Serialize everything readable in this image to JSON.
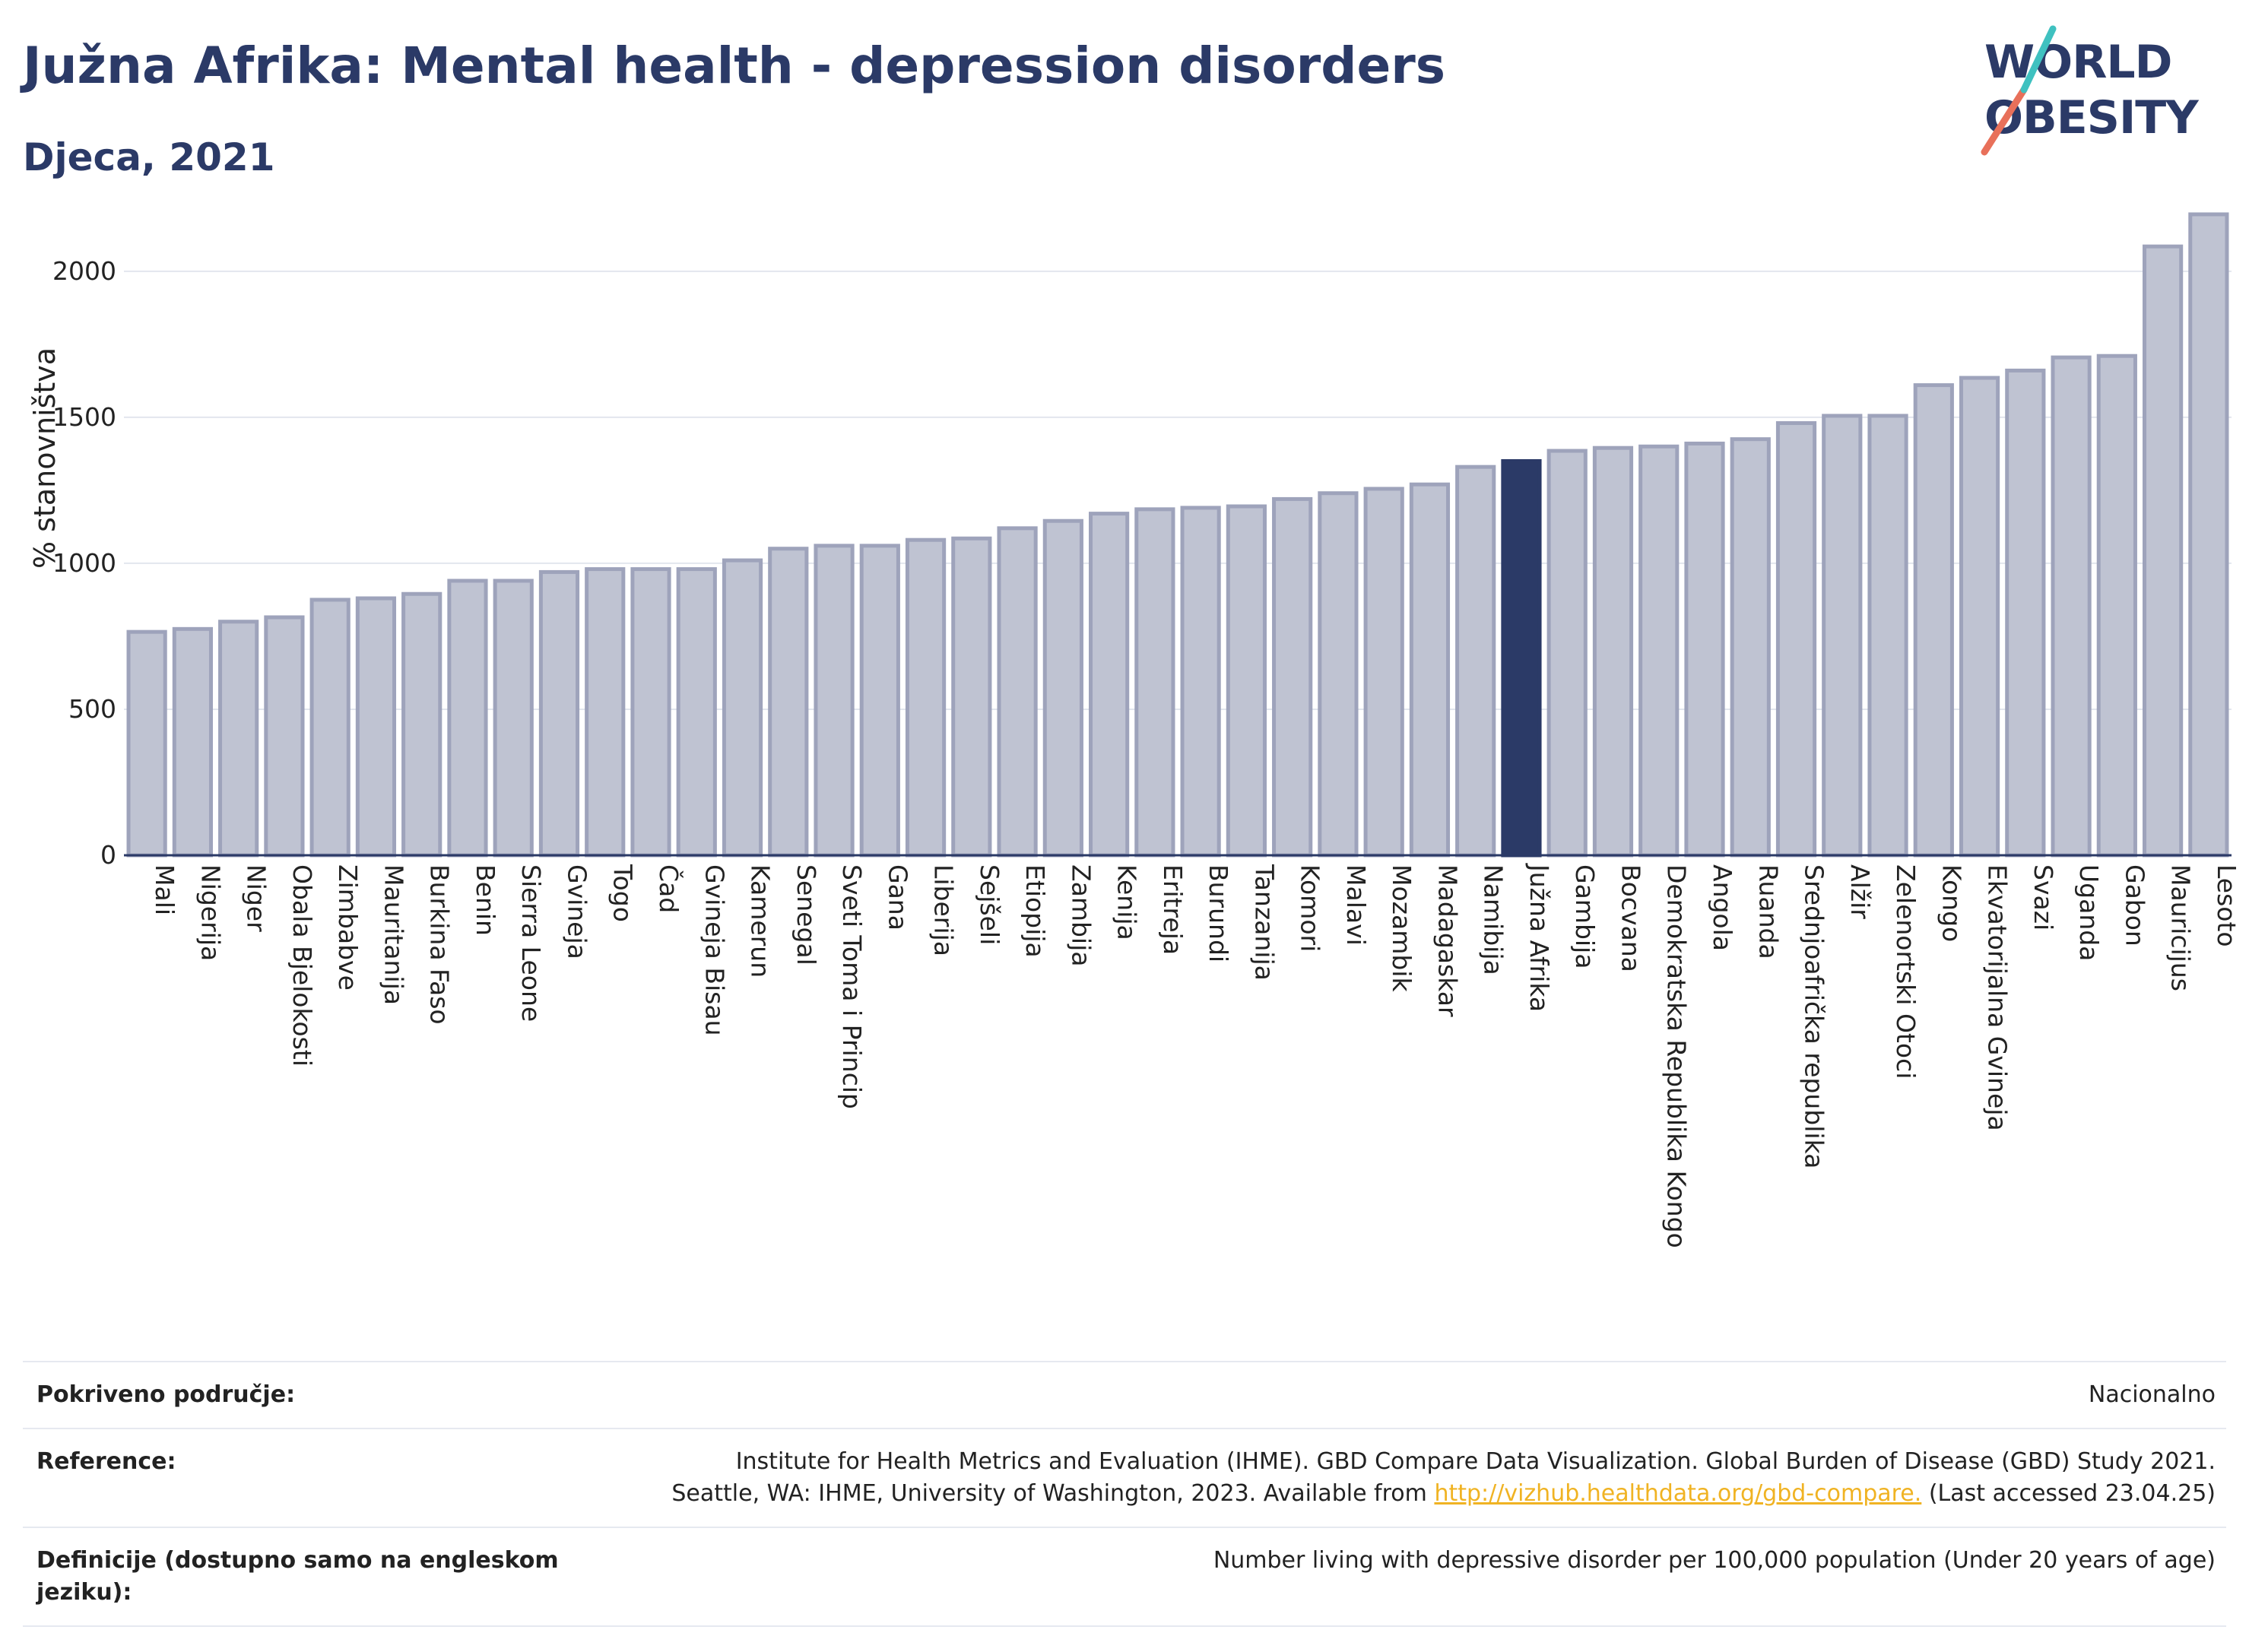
{
  "header": {
    "title": "Južna Afrika: Mental health - depression disorders",
    "subtitle": "Djeca, 2021"
  },
  "logo": {
    "line1": "WORLD",
    "line2": "OBESITY"
  },
  "colors": {
    "bar": "#bfc3d2",
    "bar_border": "#9ea3bb",
    "highlight": "#2b3a67"
  },
  "chart_data": {
    "type": "bar",
    "ylabel": "% stanovništva",
    "ylim": [
      0,
      2200
    ],
    "yticks": [
      0,
      500,
      1000,
      1500,
      2000
    ],
    "grid": true,
    "highlight": "Južna Afrika",
    "categories": [
      "Mali",
      "Nigerija",
      "Niger",
      "Obala Bjelokosti",
      "Zimbabve",
      "Mauritanija",
      "Burkina Faso",
      "Benin",
      "Sierra Leone",
      "Gvineja",
      "Togo",
      "Čad",
      "Gvineja Bisau",
      "Kamerun",
      "Senegal",
      "Sveti Toma i Princip",
      "Gana",
      "Liberija",
      "Sejšeli",
      "Etiopija",
      "Zambija",
      "Kenija",
      "Eritreja",
      "Burundi",
      "Tanzanija",
      "Komori",
      "Malavi",
      "Mozambik",
      "Madagaskar",
      "Namibija",
      "Južna Afrika",
      "Gambija",
      "Bocvana",
      "Demokratska Republika Kongo",
      "Angola",
      "Ruanda",
      "Srednjoafrička republika",
      "Alžir",
      "Zelenortski Otoci",
      "Kongo",
      "Ekvatorijalna Gvineja",
      "Svazi",
      "Uganda",
      "Gabon",
      "Mauricijus",
      "Lesoto"
    ],
    "values": [
      765,
      775,
      800,
      815,
      875,
      880,
      895,
      940,
      940,
      970,
      980,
      980,
      980,
      1010,
      1050,
      1060,
      1060,
      1080,
      1085,
      1120,
      1145,
      1170,
      1185,
      1190,
      1195,
      1220,
      1240,
      1255,
      1270,
      1330,
      1350,
      1385,
      1395,
      1400,
      1410,
      1425,
      1480,
      1505,
      1505,
      1610,
      1635,
      1660,
      1705,
      1710,
      2085,
      2195
    ]
  },
  "info": {
    "coverage_label": "Pokriveno područje:",
    "coverage_value": "Nacionalno",
    "reference_label": "Reference:",
    "reference_line1": "Institute for Health Metrics and Evaluation (IHME). GBD Compare Data Visualization. Global Burden of Disease (GBD) Study 2021.",
    "reference_line2_pre": "Seattle, WA: IHME, University of Washington, 2023. Available from",
    "reference_link": "http://vizhub.healthdata.org/gbd-compare.",
    "reference_line2_post": "(Last accessed 23.04.25)",
    "definition_label": "Definicije (dostupno samo na engleskom jeziku):",
    "definition_value": "Number living with depressive disorder per 100,000 population (Under 20 years of age)"
  }
}
